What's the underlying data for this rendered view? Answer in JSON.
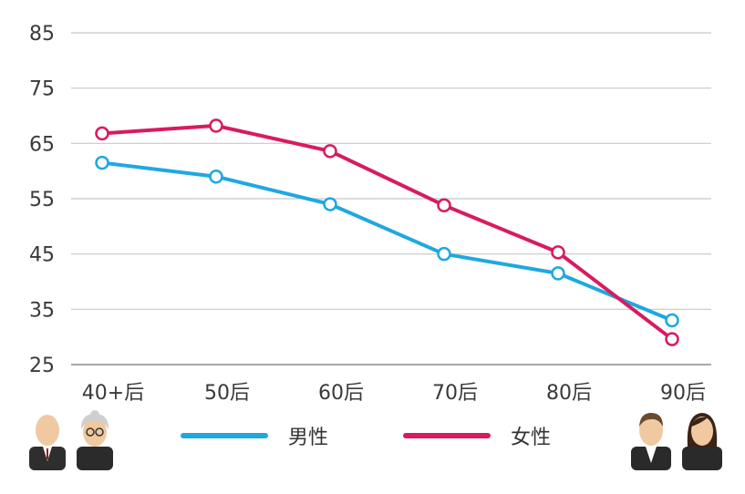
{
  "chart_data": {
    "type": "line",
    "categories": [
      "40+后",
      "50后",
      "60后",
      "70后",
      "80后",
      "90后"
    ],
    "series": [
      {
        "name": "男性",
        "color": "#1fa8e0",
        "values": [
          61.5,
          59,
          54,
          45,
          41.5,
          33
        ]
      },
      {
        "name": "女性",
        "color": "#d81b60",
        "values": [
          66.8,
          68.2,
          63.6,
          53.8,
          45.3,
          29.6
        ]
      }
    ],
    "y_ticks": [
      85,
      75,
      65,
      55,
      45,
      35,
      25
    ],
    "ylim": [
      25,
      85
    ],
    "grid": true,
    "legend_position": "bottom-center"
  },
  "avatars": {
    "left": [
      "elderly-man-icon",
      "elderly-woman-icon"
    ],
    "right": [
      "young-man-icon",
      "young-woman-icon"
    ]
  }
}
